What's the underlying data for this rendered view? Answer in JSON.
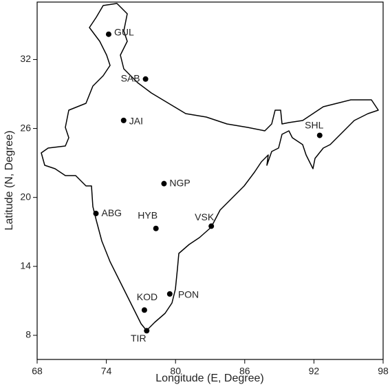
{
  "chart_data": {
    "type": "scatter",
    "x_label": "Longitude (E, Degree)",
    "y_label": "Latitude (N, Degree)",
    "xlim": [
      68,
      98
    ],
    "ylim": [
      5.9,
      37
    ],
    "xticks": [
      68,
      74,
      80,
      86,
      92,
      98
    ],
    "yticks": [
      8,
      14,
      20,
      26,
      32
    ],
    "color": "#000000",
    "labels": [
      "GUL",
      "SAB",
      "JAI",
      "SHL",
      "NGP",
      "ABG",
      "HYB",
      "VSK",
      "PON",
      "KOD",
      "TIR"
    ],
    "x": [
      74.2,
      77.4,
      75.5,
      92.5,
      79.0,
      73.1,
      78.3,
      83.1,
      79.5,
      77.3,
      77.5
    ],
    "values": [
      34.2,
      30.3,
      26.7,
      25.4,
      21.2,
      18.6,
      17.3,
      17.5,
      11.6,
      10.2,
      8.4
    ]
  }
}
